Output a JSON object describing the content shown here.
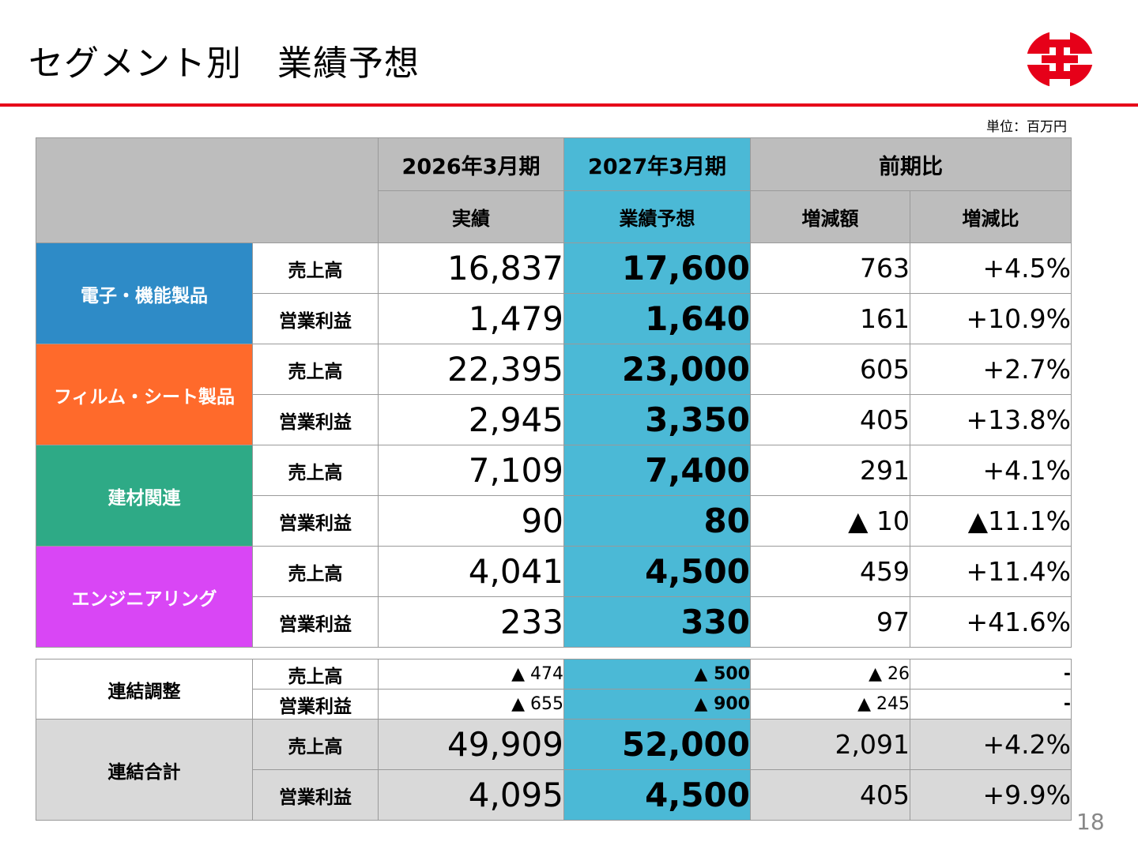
{
  "title": "セグメント別　業績予想",
  "unit": "単位：百万円",
  "page_number": "18",
  "header": {
    "col_fy2026": "2026年3月期",
    "col_fy2027": "2027年3月期",
    "col_yoy": "前期比",
    "sub_actual": "実績",
    "sub_forecast": "業績予想",
    "sub_diff": "増減額",
    "sub_ratio": "増減比"
  },
  "colors": {
    "accent_red": "#e60019",
    "forecast_col": "#4bb9d6",
    "seg_electronics": "#2e8bc7",
    "seg_film": "#ff6a2b",
    "seg_building": "#2eaa86",
    "seg_engineering": "#d946f5"
  },
  "segments": [
    {
      "name": "電子・機能製品",
      "rows": [
        {
          "metric": "売上高",
          "actual": "16,837",
          "forecast": "17,600",
          "diff": "763",
          "ratio": "+4.5%"
        },
        {
          "metric": "営業利益",
          "actual": "1,479",
          "forecast": "1,640",
          "diff": "161",
          "ratio": "+10.9%"
        }
      ]
    },
    {
      "name": "フィルム・シート製品",
      "rows": [
        {
          "metric": "売上高",
          "actual": "22,395",
          "forecast": "23,000",
          "diff": "605",
          "ratio": "+2.7%"
        },
        {
          "metric": "営業利益",
          "actual": "2,945",
          "forecast": "3,350",
          "diff": "405",
          "ratio": "+13.8%"
        }
      ]
    },
    {
      "name": "建材関連",
      "rows": [
        {
          "metric": "売上高",
          "actual": "7,109",
          "forecast": "7,400",
          "diff": "291",
          "ratio": "+4.1%"
        },
        {
          "metric": "営業利益",
          "actual": "90",
          "forecast": "80",
          "diff": "▲ 10",
          "ratio": "▲11.1%"
        }
      ]
    },
    {
      "name": "エンジニアリング",
      "rows": [
        {
          "metric": "売上高",
          "actual": "4,041",
          "forecast": "4,500",
          "diff": "459",
          "ratio": "+11.4%"
        },
        {
          "metric": "営業利益",
          "actual": "233",
          "forecast": "330",
          "diff": "97",
          "ratio": "+41.6%"
        }
      ]
    }
  ],
  "adjustment": {
    "name": "連結調整",
    "rows": [
      {
        "metric": "売上高",
        "actual": "▲ 474",
        "forecast": "▲ 500",
        "diff": "▲ 26",
        "ratio": "-"
      },
      {
        "metric": "営業利益",
        "actual": "▲ 655",
        "forecast": "▲ 900",
        "diff": "▲ 245",
        "ratio": "-"
      }
    ]
  },
  "total": {
    "name": "連結合計",
    "rows": [
      {
        "metric": "売上高",
        "actual": "49,909",
        "forecast": "52,000",
        "diff": "2,091",
        "ratio": "+4.2%"
      },
      {
        "metric": "営業利益",
        "actual": "4,095",
        "forecast": "4,500",
        "diff": "405",
        "ratio": "+9.9%"
      }
    ]
  }
}
